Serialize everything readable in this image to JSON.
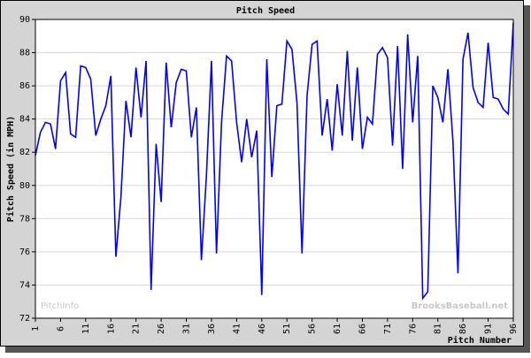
{
  "chart_data": {
    "type": "line",
    "title": "Pitch Speed",
    "y_label": "Pitch Speed (in MPH)",
    "x_label": "Pitch Number",
    "watermarks": [
      "PitchInfo",
      "BrooksBaseball.net"
    ],
    "x": [
      1,
      2,
      3,
      4,
      5,
      6,
      7,
      8,
      9,
      10,
      11,
      12,
      13,
      14,
      15,
      16,
      17,
      18,
      19,
      20,
      21,
      22,
      23,
      24,
      25,
      26,
      27,
      28,
      29,
      30,
      31,
      32,
      33,
      34,
      35,
      36,
      37,
      38,
      39,
      40,
      41,
      42,
      43,
      44,
      45,
      46,
      47,
      48,
      49,
      50,
      51,
      52,
      53,
      54,
      55,
      56,
      57,
      58,
      59,
      60,
      61,
      62,
      63,
      64,
      65,
      66,
      67,
      68,
      69,
      70,
      71,
      72,
      73,
      74,
      75,
      76,
      77,
      78,
      79,
      80,
      81,
      82,
      83,
      84,
      85,
      86,
      87,
      88,
      89,
      90,
      91,
      92,
      93,
      94,
      95,
      96
    ],
    "series": [
      {
        "name": "Pitch Speed",
        "color": "#0000ff",
        "values": [
          81.8,
          83.2,
          83.8,
          83.7,
          82.2,
          86.3,
          86.8,
          83.1,
          82.9,
          87.2,
          87.1,
          86.4,
          83.0,
          84.0,
          84.8,
          86.6,
          75.7,
          79.3,
          85.1,
          82.9,
          87.1,
          84.1,
          87.5,
          73.7,
          82.5,
          79.0,
          87.4,
          83.5,
          86.2,
          87.0,
          86.9,
          82.9,
          84.7,
          75.5,
          80.6,
          87.5,
          75.9,
          83.8,
          87.8,
          87.5,
          83.8,
          81.4,
          84.0,
          81.7,
          83.3,
          73.4,
          87.6,
          80.5,
          84.8,
          84.9,
          88.7,
          88.2,
          85.0,
          75.9,
          85.4,
          88.5,
          88.7,
          83.0,
          85.2,
          82.1,
          86.1,
          83.0,
          88.1,
          82.7,
          87.1,
          82.2,
          84.1,
          83.7,
          87.9,
          88.3,
          87.7,
          82.4,
          88.4,
          81.0,
          89.1,
          83.8,
          87.8,
          73.2,
          73.6,
          86.0,
          85.3,
          83.8,
          87.0,
          82.7,
          74.7,
          87.6,
          89.2,
          85.9,
          85.0,
          84.7,
          88.6,
          85.3,
          85.2,
          84.6,
          84.3,
          89.8
        ]
      }
    ],
    "xlim": [
      1,
      96
    ],
    "xticks": [
      1,
      6,
      11,
      16,
      21,
      26,
      31,
      36,
      41,
      46,
      51,
      56,
      61,
      66,
      71,
      76,
      81,
      86,
      91,
      96
    ],
    "ylim": [
      72,
      90
    ],
    "yticks": [
      72,
      74,
      76,
      78,
      80,
      82,
      84,
      86,
      88,
      90
    ],
    "grid": true
  }
}
